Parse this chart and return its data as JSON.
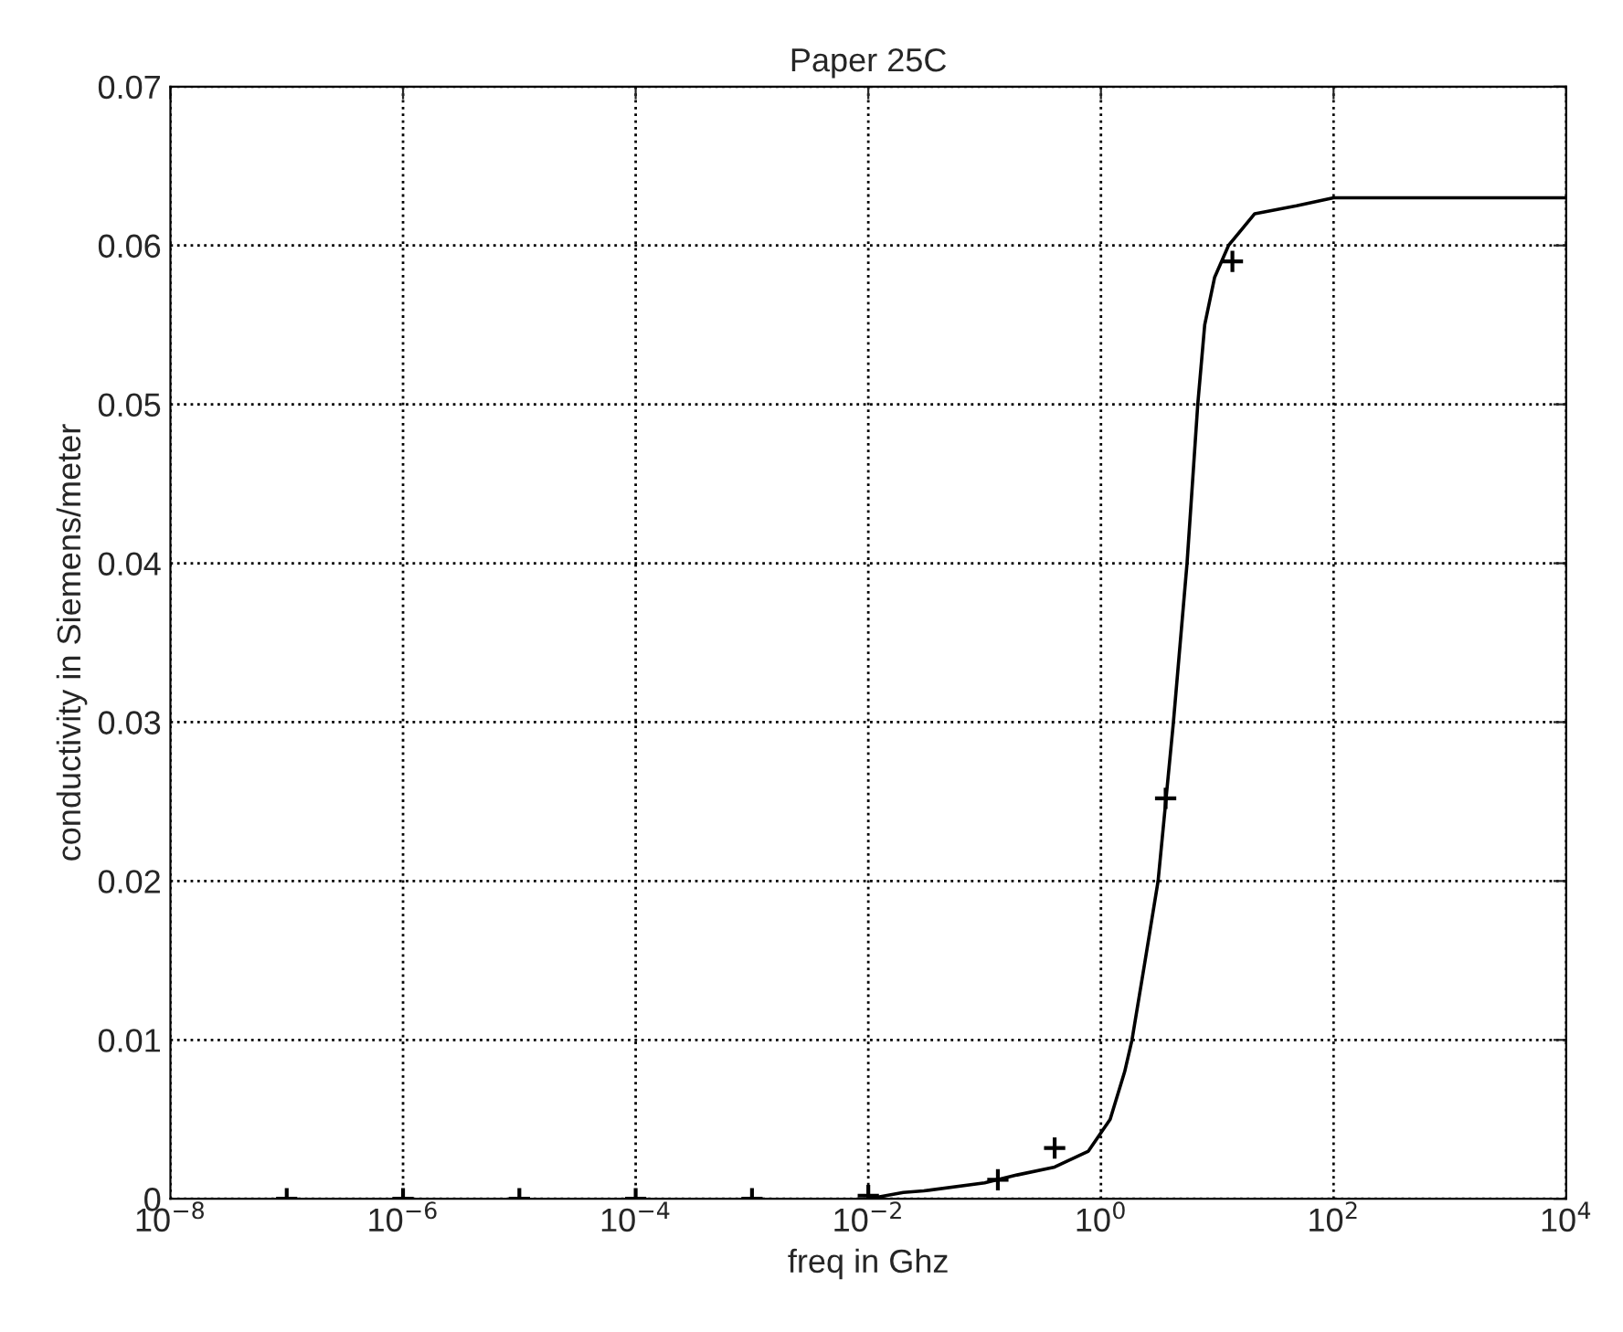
{
  "chart_data": {
    "type": "line",
    "title": "Paper 25C",
    "xlabel": "freq in Ghz",
    "ylabel": "conductivity in Siemens/meter",
    "log": "x",
    "grid": true,
    "line_style": "dotted",
    "xlim": [
      1e-08,
      10000
    ],
    "xticks": [
      {
        "value": 1e-08,
        "label": "10$^{−8}$"
      },
      {
        "value": 1e-06,
        "label": "10$^{−6}$"
      },
      {
        "value": 0.0001,
        "label": "10$^{−4}$"
      },
      {
        "value": 0.01,
        "label": "10$^{−2}$"
      },
      {
        "value": 1,
        "label": "10$^{0}$"
      },
      {
        "value": 100,
        "label": "10$^{2}$"
      },
      {
        "value": 10000,
        "label": "10$^{4}$"
      }
    ],
    "ylim": [
      0,
      0.07
    ],
    "yticks": [
      0,
      0.01,
      0.02,
      0.03,
      0.04,
      0.05,
      0.06,
      0.07
    ],
    "series": [
      {
        "color": "#000000",
        "line_style": "solid",
        "marker": "none",
        "x": [
          0.01,
          0.02,
          0.03,
          0.1,
          0.19,
          0.4,
          0.78,
          1.2,
          1.6,
          1.85,
          2.4,
          3.1,
          4.2,
          5.5,
          6.8,
          7.8,
          9.5,
          12.5,
          21,
          48,
          100,
          10000
        ],
        "values": [
          0,
          0.0004,
          0.0005,
          0.001,
          0.0015,
          0.002,
          0.003,
          0.005,
          0.008,
          0.01,
          0.015,
          0.02,
          0.03,
          0.04,
          0.05,
          0.055,
          0.058,
          0.06,
          0.062,
          0.0625,
          0.063,
          0.063
        ]
      },
      {
        "type": "scatter",
        "color": "#000000",
        "marker": "cross",
        "x": [
          1e-07,
          1e-06,
          1e-05,
          0.0001,
          0.001,
          0.01,
          0.13,
          0.4,
          3.6,
          13.5
        ],
        "values": [
          0,
          0,
          0,
          0,
          0,
          0.0002,
          0.0012,
          0.0032,
          0.0252,
          0.059
        ]
      }
    ]
  }
}
